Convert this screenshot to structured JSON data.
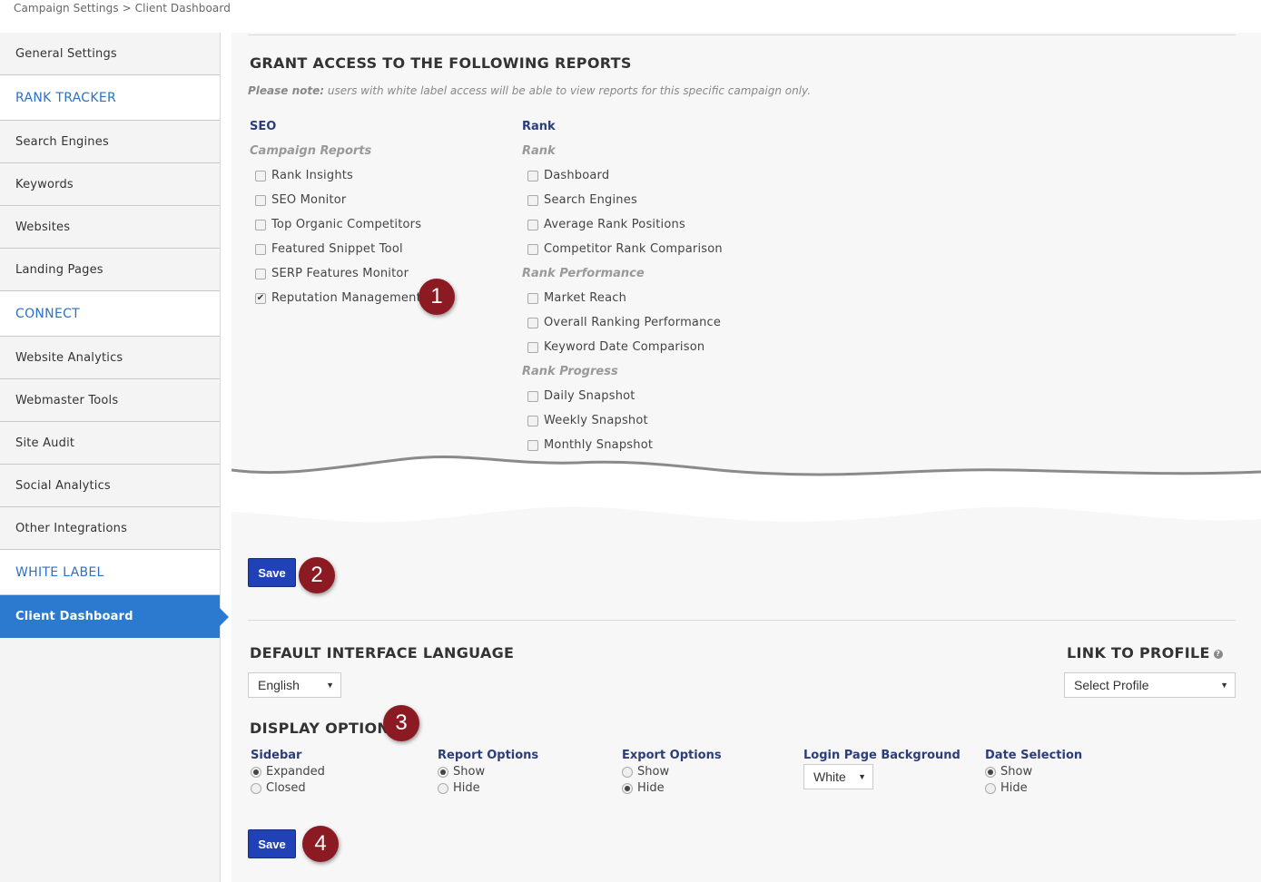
{
  "breadcrumb": "Campaign Settings > Client Dashboard",
  "sidebar": {
    "items": [
      {
        "label": "General Settings",
        "type": "item"
      },
      {
        "label": "RANK TRACKER",
        "type": "header"
      },
      {
        "label": "Search Engines",
        "type": "item"
      },
      {
        "label": "Keywords",
        "type": "item"
      },
      {
        "label": "Websites",
        "type": "item"
      },
      {
        "label": "Landing Pages",
        "type": "item"
      },
      {
        "label": "CONNECT",
        "type": "header"
      },
      {
        "label": "Website Analytics",
        "type": "item"
      },
      {
        "label": "Webmaster Tools",
        "type": "item"
      },
      {
        "label": "Site Audit",
        "type": "item"
      },
      {
        "label": "Social Analytics",
        "type": "item"
      },
      {
        "label": "Other Integrations",
        "type": "item"
      },
      {
        "label": "WHITE LABEL",
        "type": "header"
      },
      {
        "label": "Client Dashboard",
        "type": "active"
      }
    ]
  },
  "grant": {
    "title": "GRANT ACCESS TO THE FOLLOWING REPORTS",
    "note_bold": "Please note:",
    "note_text": " users with white label access will be able to view reports for this specific campaign only.",
    "seo": {
      "heading": "SEO",
      "sub": "Campaign Reports",
      "items": [
        {
          "label": "Rank Insights",
          "checked": false
        },
        {
          "label": "SEO Monitor",
          "checked": false
        },
        {
          "label": "Top Organic Competitors",
          "checked": false
        },
        {
          "label": "Featured Snippet Tool",
          "checked": false
        },
        {
          "label": "SERP Features Monitor",
          "checked": false
        },
        {
          "label": "Reputation Management",
          "checked": true
        }
      ]
    },
    "rank": {
      "heading": "Rank",
      "groups": [
        {
          "sub": "Rank",
          "items": [
            "Dashboard",
            "Search Engines",
            "Average Rank Positions",
            "Competitor Rank Comparison"
          ]
        },
        {
          "sub": "Rank Performance",
          "items": [
            "Market Reach",
            "Overall Ranking Performance",
            "Keyword Date Comparison"
          ]
        },
        {
          "sub": "Rank Progress",
          "items": [
            "Daily Snapshot",
            "Weekly Snapshot",
            "Monthly Snapshot"
          ]
        }
      ]
    }
  },
  "badges": [
    "1",
    "2",
    "3",
    "4"
  ],
  "save_label": "Save",
  "language": {
    "title": "DEFAULT INTERFACE LANGUAGE",
    "value": "English"
  },
  "profile": {
    "title": "LINK TO PROFILE",
    "help": "?",
    "value": "Select Profile"
  },
  "display": {
    "title": "DISPLAY OPTIONS",
    "sidebar": {
      "label": "Sidebar",
      "options": [
        "Expanded",
        "Closed"
      ],
      "selected": 0
    },
    "report_options": {
      "label": "Report Options",
      "options": [
        "Show",
        "Hide"
      ],
      "selected": 0
    },
    "export_options": {
      "label": "Export Options",
      "options": [
        "Show",
        "Hide"
      ],
      "selected": 1
    },
    "login_bg": {
      "label": "Login Page Background",
      "value": "White"
    },
    "date_selection": {
      "label": "Date Selection",
      "options": [
        "Show",
        "Hide"
      ],
      "selected": 0
    }
  },
  "colors": {
    "accent": "#2b7ad0",
    "button": "#2142b7",
    "badge": "#8b1a22",
    "heading_blue": "#2c3e7a"
  }
}
